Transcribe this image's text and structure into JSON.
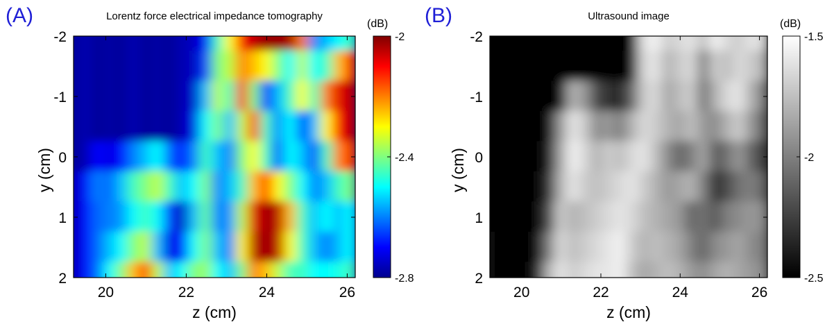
{
  "chart_data": [
    {
      "panel_label": "(A)",
      "type": "heatmap",
      "title": "Lorentz force electrical impedance tomography",
      "xlabel": "z (cm)",
      "ylabel": "y (cm)",
      "xlim": [
        19.2,
        26.2
      ],
      "ylim": [
        -2,
        2
      ],
      "y_inverted": true,
      "xticks": [
        20,
        22,
        24,
        26
      ],
      "yticks": [
        -2,
        -1,
        0,
        1,
        2
      ],
      "colormap": "jet",
      "colorbar": {
        "unit": "(dB)",
        "min": -2.8,
        "max": -2,
        "ticks": [
          -2,
          -2.4,
          -2.8
        ]
      },
      "x_grid": [
        19.2,
        19.5,
        19.8,
        20.1,
        20.4,
        20.7,
        21.0,
        21.3,
        21.6,
        21.9,
        22.2,
        22.5,
        22.8,
        23.1,
        23.4,
        23.7,
        24.0,
        24.3,
        24.6,
        24.9,
        25.2,
        25.5,
        25.8,
        26.1
      ],
      "y_grid": [
        -2.0,
        -1.5,
        -1.0,
        -0.5,
        0.0,
        0.5,
        1.0,
        1.5,
        2.0
      ],
      "values": [
        [
          -2.78,
          -2.76,
          -2.78,
          -2.77,
          -2.78,
          -2.76,
          -2.78,
          -2.77,
          -2.78,
          -2.76,
          -2.75,
          -2.7,
          -2.45,
          -2.3,
          -2.1,
          -2.05,
          -2.02,
          -2.02,
          -2.03,
          -2.2,
          -2.6,
          -2.55,
          -2.5,
          -2.45
        ],
        [
          -2.78,
          -2.76,
          -2.78,
          -2.77,
          -2.78,
          -2.76,
          -2.78,
          -2.77,
          -2.78,
          -2.76,
          -2.75,
          -2.65,
          -2.4,
          -2.35,
          -2.2,
          -2.25,
          -2.3,
          -2.4,
          -2.5,
          -2.35,
          -2.5,
          -2.45,
          -2.25,
          -2.15
        ],
        [
          -2.78,
          -2.76,
          -2.78,
          -2.77,
          -2.78,
          -2.76,
          -2.78,
          -2.77,
          -2.78,
          -2.76,
          -2.74,
          -2.55,
          -2.35,
          -2.45,
          -2.12,
          -2.4,
          -2.7,
          -2.55,
          -2.45,
          -2.3,
          -2.45,
          -2.2,
          -2.08,
          -2.05
        ],
        [
          -2.78,
          -2.76,
          -2.78,
          -2.77,
          -2.78,
          -2.76,
          -2.78,
          -2.77,
          -2.78,
          -2.76,
          -2.72,
          -2.5,
          -2.4,
          -2.55,
          -2.35,
          -2.15,
          -2.45,
          -2.6,
          -2.5,
          -2.65,
          -2.55,
          -2.3,
          -2.1,
          -2.05
        ],
        [
          -2.78,
          -2.76,
          -2.7,
          -2.72,
          -2.7,
          -2.6,
          -2.55,
          -2.5,
          -2.62,
          -2.7,
          -2.6,
          -2.45,
          -2.55,
          -2.6,
          -2.4,
          -2.3,
          -2.45,
          -2.65,
          -2.5,
          -2.55,
          -2.65,
          -2.45,
          -2.2,
          -2.15
        ],
        [
          -2.76,
          -2.7,
          -2.6,
          -2.62,
          -2.55,
          -2.45,
          -2.4,
          -2.35,
          -2.45,
          -2.55,
          -2.5,
          -2.4,
          -2.6,
          -2.55,
          -2.45,
          -2.25,
          -2.15,
          -2.3,
          -2.4,
          -2.5,
          -2.6,
          -2.55,
          -2.45,
          -2.4
        ],
        [
          -2.76,
          -2.7,
          -2.62,
          -2.6,
          -2.58,
          -2.5,
          -2.45,
          -2.5,
          -2.65,
          -2.75,
          -2.55,
          -2.42,
          -2.6,
          -2.58,
          -2.35,
          -2.08,
          -2.02,
          -2.05,
          -2.25,
          -2.45,
          -2.55,
          -2.5,
          -2.55,
          -2.5
        ],
        [
          -2.76,
          -2.7,
          -2.62,
          -2.55,
          -2.5,
          -2.4,
          -2.35,
          -2.55,
          -2.72,
          -2.7,
          -2.5,
          -2.4,
          -2.55,
          -2.6,
          -2.3,
          -2.05,
          -2.02,
          -2.05,
          -2.3,
          -2.45,
          -2.55,
          -2.6,
          -2.55,
          -2.5
        ],
        [
          -2.76,
          -2.7,
          -2.62,
          -2.5,
          -2.4,
          -2.25,
          -2.15,
          -2.35,
          -2.55,
          -2.5,
          -2.4,
          -2.38,
          -2.5,
          -2.55,
          -2.4,
          -2.2,
          -2.25,
          -2.35,
          -2.45,
          -2.45,
          -2.5,
          -2.5,
          -2.48,
          -2.45
        ]
      ]
    },
    {
      "panel_label": "(B)",
      "type": "heatmap",
      "title": "Ultrasound image",
      "xlabel": "z (cm)",
      "ylabel": "y (cm)",
      "xlim": [
        19.2,
        26.2
      ],
      "ylim": [
        -2,
        2
      ],
      "y_inverted": true,
      "xticks": [
        20,
        22,
        24,
        26
      ],
      "yticks": [
        -2,
        -1,
        0,
        1,
        2
      ],
      "colormap": "gray",
      "colorbar": {
        "unit": "(dB)",
        "min": -2.5,
        "max": -1.5,
        "ticks": [
          -1.5,
          -2,
          -2.5
        ]
      },
      "x_grid": [
        19.2,
        19.5,
        19.8,
        20.1,
        20.4,
        20.7,
        21.0,
        21.3,
        21.6,
        21.9,
        22.2,
        22.5,
        22.8,
        23.1,
        23.4,
        23.7,
        24.0,
        24.3,
        24.6,
        24.9,
        25.2,
        25.5,
        25.8,
        26.1
      ],
      "y_grid": [
        -2.0,
        -1.5,
        -1.0,
        -0.5,
        0.0,
        0.5,
        1.0,
        1.5,
        2.0
      ],
      "values": [
        [
          -2.5,
          -2.5,
          -2.5,
          -2.5,
          -2.5,
          -2.5,
          -2.5,
          -2.5,
          -2.5,
          -2.5,
          -2.5,
          -2.5,
          -2.5,
          -1.6,
          -1.55,
          -1.7,
          -1.65,
          -1.6,
          -1.75,
          -1.55,
          -1.65,
          -1.7,
          -1.6,
          -1.65
        ],
        [
          -2.5,
          -2.5,
          -2.5,
          -2.5,
          -2.5,
          -2.5,
          -2.5,
          -2.5,
          -2.5,
          -2.5,
          -2.5,
          -2.5,
          -2.45,
          -1.65,
          -1.6,
          -1.8,
          -1.7,
          -1.65,
          -2.0,
          -1.7,
          -1.75,
          -1.65,
          -1.7,
          -1.8
        ],
        [
          -2.5,
          -2.5,
          -2.5,
          -2.5,
          -2.5,
          -2.5,
          -2.45,
          -1.8,
          -1.9,
          -2.2,
          -2.3,
          -2.35,
          -2.1,
          -1.7,
          -1.65,
          -1.85,
          -1.75,
          -1.7,
          -2.05,
          -1.8,
          -1.65,
          -1.6,
          -1.8,
          -2.0
        ],
        [
          -2.5,
          -2.5,
          -2.5,
          -2.5,
          -2.5,
          -2.45,
          -1.9,
          -1.6,
          -1.7,
          -1.95,
          -1.9,
          -2.0,
          -1.8,
          -1.65,
          -1.7,
          -1.8,
          -1.85,
          -1.75,
          -1.9,
          -1.95,
          -1.8,
          -1.7,
          -1.9,
          -2.1
        ],
        [
          -2.5,
          -2.5,
          -2.5,
          -2.5,
          -2.5,
          -2.4,
          -1.85,
          -1.55,
          -1.65,
          -1.8,
          -1.7,
          -1.75,
          -1.65,
          -1.6,
          -1.75,
          -1.95,
          -2.1,
          -2.0,
          -1.85,
          -2.15,
          -2.05,
          -1.9,
          -2.1,
          -2.25
        ],
        [
          -2.5,
          -2.5,
          -2.5,
          -2.5,
          -2.5,
          -2.3,
          -1.8,
          -1.6,
          -1.7,
          -1.75,
          -1.7,
          -1.65,
          -1.6,
          -1.7,
          -1.8,
          -1.9,
          -1.85,
          -1.8,
          -2.0,
          -2.3,
          -2.2,
          -2.05,
          -2.0,
          -2.1
        ],
        [
          -2.5,
          -2.5,
          -2.5,
          -2.5,
          -2.5,
          -2.2,
          -1.7,
          -1.8,
          -1.75,
          -1.7,
          -1.65,
          -1.6,
          -1.65,
          -1.75,
          -1.8,
          -1.85,
          -1.9,
          -2.1,
          -2.05,
          -2.15,
          -2.0,
          -1.95,
          -1.9,
          -1.95
        ],
        [
          -2.45,
          -2.5,
          -2.5,
          -2.5,
          -2.45,
          -2.0,
          -1.65,
          -1.75,
          -1.7,
          -1.65,
          -1.6,
          -1.55,
          -1.7,
          -1.8,
          -1.75,
          -1.8,
          -1.85,
          -2.0,
          -2.1,
          -1.95,
          -1.9,
          -1.85,
          -1.95,
          -2.0
        ],
        [
          -2.45,
          -2.5,
          -2.5,
          -2.5,
          -2.4,
          -1.8,
          -1.6,
          -1.7,
          -1.65,
          -1.6,
          -1.6,
          -1.55,
          -1.75,
          -1.85,
          -1.8,
          -1.75,
          -1.8,
          -1.9,
          -1.95,
          -1.85,
          -1.8,
          -1.85,
          -1.9,
          -1.95
        ]
      ]
    }
  ]
}
